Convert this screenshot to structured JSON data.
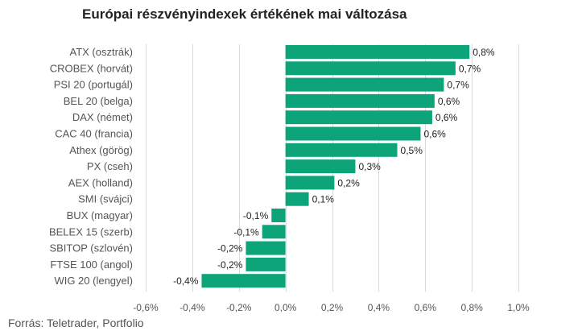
{
  "chart_data": {
    "type": "bar",
    "orientation": "horizontal",
    "title": "Európai részvényindexek értékének mai változása",
    "source": "Forrás: Teletrader, Portfolio",
    "categories": [
      "ATX (osztrák)",
      "CROBEX (horvát)",
      "PSI 20 (portugál)",
      "BEL 20 (belga)",
      "DAX (német)",
      "CAC 40 (francia)",
      "Athex (görög)",
      "PX (cseh)",
      "AEX (holland)",
      "SMI (svájci)",
      "BUX (magyar)",
      "BELEX 15 (szerb)",
      "SBITOP (szlovén)",
      "FTSE 100 (angol)",
      "WIG 20 (lengyel)"
    ],
    "values": [
      0.79,
      0.73,
      0.68,
      0.64,
      0.63,
      0.58,
      0.48,
      0.3,
      0.21,
      0.1,
      -0.06,
      -0.1,
      -0.17,
      -0.17,
      -0.36
    ],
    "data_labels": [
      "0,8%",
      "0,7%",
      "0,7%",
      "0,6%",
      "0,6%",
      "0,6%",
      "0,5%",
      "0,3%",
      "0,2%",
      "0,1%",
      "-0,1%",
      "-0,1%",
      "-0,2%",
      "-0,2%",
      "-0,4%"
    ],
    "xlim": [
      -0.6,
      1.0
    ],
    "xticks": [
      -0.6,
      -0.4,
      -0.2,
      0.0,
      0.2,
      0.4,
      0.6,
      0.8,
      1.0
    ],
    "xtick_labels": [
      "-0,6%",
      "-0,4%",
      "-0,2%",
      "0,0%",
      "0,2%",
      "0,4%",
      "0,6%",
      "0,8%",
      "1,0%"
    ],
    "xlabel": "",
    "ylabel": "",
    "grid": "vertical",
    "legend": "none",
    "bar_color": "#0ea47a"
  }
}
